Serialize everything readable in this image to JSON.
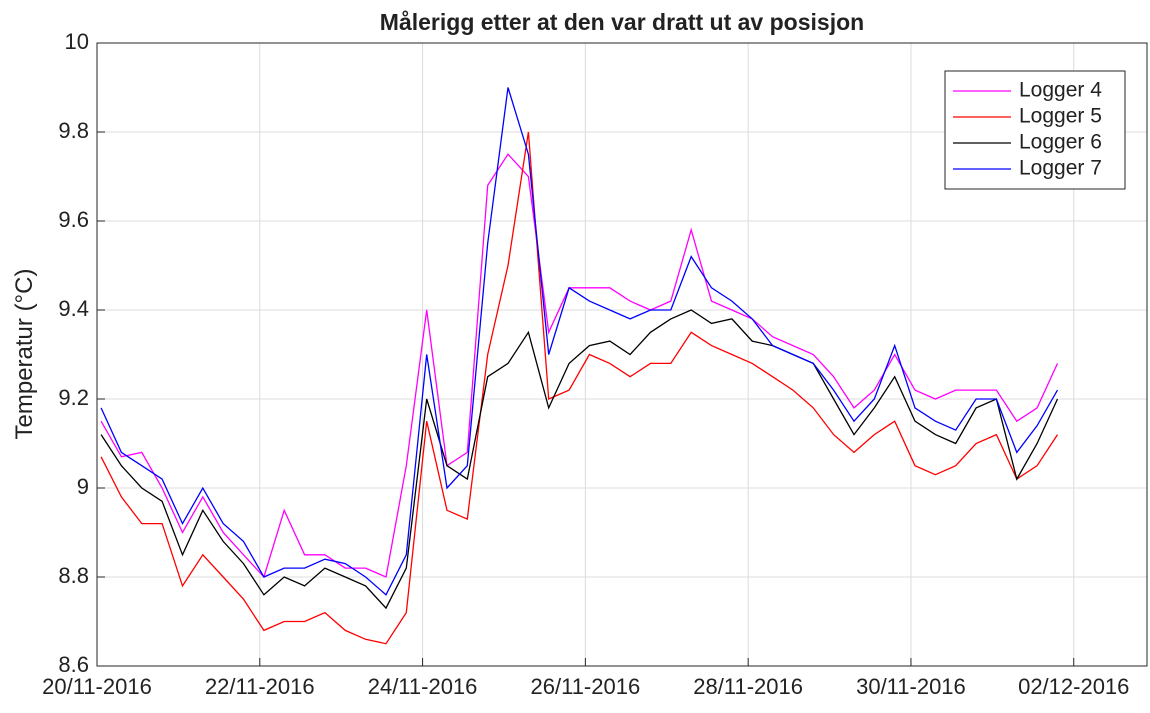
{
  "chart_data": {
    "type": "line",
    "title": "Målerigg etter at den var dratt ut av posisjon",
    "y_label": "Temperatur (°C)",
    "x": [
      0.05,
      0.3,
      0.55,
      0.8,
      1.05,
      1.3,
      1.55,
      1.8,
      2.05,
      2.3,
      2.55,
      2.8,
      3.05,
      3.3,
      3.55,
      3.8,
      4.05,
      4.3,
      4.55,
      4.8,
      5.05,
      5.3,
      5.55,
      5.8,
      6.05,
      6.3,
      6.55,
      6.8,
      7.05,
      7.3,
      7.55,
      7.8,
      8.05,
      8.3,
      8.55,
      8.8,
      9.05,
      9.3,
      9.55,
      9.8,
      10.05,
      10.3,
      10.55,
      10.8,
      11.05,
      11.3,
      11.55,
      11.8
    ],
    "series": [
      {
        "name": "Logger 4",
        "color": "#ff00ff",
        "values": [
          9.15,
          9.07,
          9.08,
          9.0,
          8.9,
          8.98,
          8.9,
          8.85,
          8.8,
          8.95,
          8.85,
          8.85,
          8.82,
          8.82,
          8.8,
          9.05,
          9.4,
          9.05,
          9.08,
          9.68,
          9.75,
          9.7,
          9.35,
          9.45,
          9.45,
          9.45,
          9.42,
          9.4,
          9.42,
          9.58,
          9.42,
          9.4,
          9.38,
          9.34,
          9.32,
          9.3,
          9.25,
          9.18,
          9.22,
          9.3,
          9.22,
          9.2,
          9.22,
          9.22,
          9.22,
          9.15,
          9.18,
          9.28
        ]
      },
      {
        "name": "Logger 5",
        "color": "#ff0000",
        "values": [
          9.07,
          8.98,
          8.92,
          8.92,
          8.78,
          8.85,
          8.8,
          8.75,
          8.68,
          8.7,
          8.7,
          8.72,
          8.68,
          8.66,
          8.65,
          8.72,
          9.15,
          8.95,
          8.93,
          9.3,
          9.5,
          9.8,
          9.2,
          9.22,
          9.3,
          9.28,
          9.25,
          9.28,
          9.28,
          9.35,
          9.32,
          9.3,
          9.28,
          9.25,
          9.22,
          9.18,
          9.12,
          9.08,
          9.12,
          9.15,
          9.05,
          9.03,
          9.05,
          9.1,
          9.12,
          9.02,
          9.05,
          9.12
        ]
      },
      {
        "name": "Logger 6",
        "color": "#000000",
        "values": [
          9.12,
          9.05,
          9.0,
          8.97,
          8.85,
          8.95,
          8.88,
          8.83,
          8.76,
          8.8,
          8.78,
          8.82,
          8.8,
          8.78,
          8.73,
          8.82,
          9.2,
          9.05,
          9.02,
          9.25,
          9.28,
          9.35,
          9.18,
          9.28,
          9.32,
          9.33,
          9.3,
          9.35,
          9.38,
          9.4,
          9.37,
          9.38,
          9.33,
          9.32,
          9.3,
          9.28,
          9.2,
          9.12,
          9.18,
          9.25,
          9.15,
          9.12,
          9.1,
          9.18,
          9.2,
          9.02,
          9.1,
          9.2
        ]
      },
      {
        "name": "Logger 7",
        "color": "#0000ff",
        "values": [
          9.18,
          9.08,
          9.05,
          9.02,
          8.92,
          9.0,
          8.92,
          8.88,
          8.8,
          8.82,
          8.82,
          8.84,
          8.83,
          8.8,
          8.76,
          8.85,
          9.3,
          9.0,
          9.05,
          9.55,
          9.9,
          9.75,
          9.3,
          9.45,
          9.42,
          9.4,
          9.38,
          9.4,
          9.4,
          9.52,
          9.45,
          9.42,
          9.38,
          9.32,
          9.3,
          9.28,
          9.22,
          9.15,
          9.2,
          9.32,
          9.18,
          9.15,
          9.13,
          9.2,
          9.2,
          9.08,
          9.14,
          9.22
        ]
      }
    ],
    "xlim": [
      0,
      12.9
    ],
    "xticks": [
      {
        "value": 0,
        "label": "20/11-2016"
      },
      {
        "value": 2,
        "label": "22/11-2016"
      },
      {
        "value": 4,
        "label": "24/11-2016"
      },
      {
        "value": 6,
        "label": "26/11-2016"
      },
      {
        "value": 8,
        "label": "28/11-2016"
      },
      {
        "value": 10,
        "label": "30/11-2016"
      },
      {
        "value": 12,
        "label": "02/12-2016"
      }
    ],
    "ylim": [
      8.6,
      10
    ],
    "yticks": [
      8.6,
      8.8,
      9,
      9.2,
      9.4,
      9.6,
      9.8,
      10
    ],
    "grid": true,
    "legend": "top-right"
  }
}
